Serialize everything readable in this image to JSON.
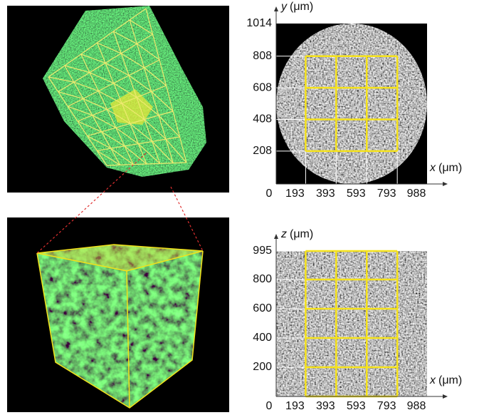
{
  "figure": {
    "unit": "(μm)",
    "plots": [
      {
        "x_label": "x",
        "y_label": "y",
        "origin": 0,
        "xlim": [
          0,
          988
        ],
        "ylim": [
          0,
          1014
        ],
        "xticks": [
          193,
          393,
          593,
          793,
          988
        ],
        "yticks": [
          208,
          408,
          608,
          808,
          1014
        ],
        "shape": "circle"
      },
      {
        "x_label": "x",
        "y_label": "z",
        "origin": 0,
        "xlim": [
          0,
          988
        ],
        "ylim": [
          0,
          995
        ],
        "xticks": [
          193,
          393,
          593,
          793,
          988
        ],
        "yticks": [
          200,
          400,
          600,
          800,
          995
        ],
        "shape": "rect"
      }
    ]
  }
}
